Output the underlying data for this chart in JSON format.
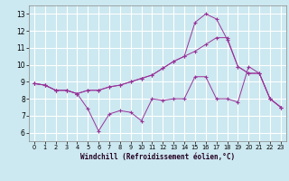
{
  "xlabel": "Windchill (Refroidissement éolien,°C)",
  "background_color": "#cce8f0",
  "grid_color": "#ffffff",
  "line_color": "#993399",
  "xlim_min": -0.5,
  "xlim_max": 23.5,
  "ylim_min": 5.5,
  "ylim_max": 13.5,
  "yticks": [
    6,
    7,
    8,
    9,
    10,
    11,
    12,
    13
  ],
  "xticks": [
    0,
    1,
    2,
    3,
    4,
    5,
    6,
    7,
    8,
    9,
    10,
    11,
    12,
    13,
    14,
    15,
    16,
    17,
    18,
    19,
    20,
    21,
    22,
    23
  ],
  "series1": [
    8.9,
    8.8,
    8.5,
    8.5,
    8.3,
    7.4,
    6.1,
    7.1,
    7.3,
    7.2,
    6.7,
    8.0,
    7.9,
    8.0,
    8.0,
    9.3,
    9.3,
    8.0,
    8.0,
    7.8,
    9.9,
    9.5,
    8.0,
    7.5
  ],
  "series2": [
    8.9,
    8.8,
    8.5,
    8.5,
    8.3,
    8.5,
    8.5,
    8.7,
    8.8,
    9.0,
    9.2,
    9.4,
    9.8,
    10.2,
    10.5,
    10.8,
    11.2,
    11.6,
    11.6,
    9.9,
    9.5,
    9.5,
    8.0,
    7.5
  ],
  "series3": [
    8.9,
    8.8,
    8.5,
    8.5,
    8.3,
    8.5,
    8.5,
    8.7,
    8.8,
    9.0,
    9.2,
    9.4,
    9.8,
    10.2,
    10.5,
    12.5,
    13.0,
    12.7,
    11.5,
    9.9,
    9.5,
    9.5,
    8.0,
    7.5
  ],
  "xlabel_fontsize": 5.5,
  "tick_fontsize_x": 4.8,
  "tick_fontsize_y": 5.5
}
